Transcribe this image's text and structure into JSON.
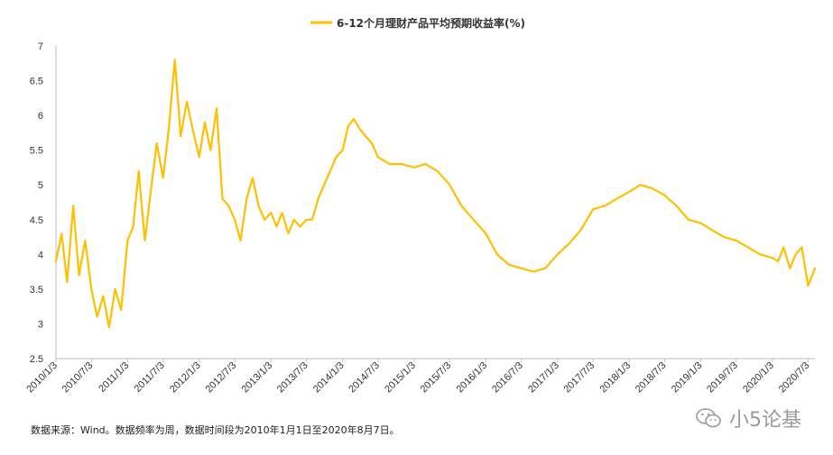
{
  "chart_data": {
    "type": "line",
    "title": "",
    "xlabel": "",
    "ylabel": "",
    "ylim": [
      2.5,
      7
    ],
    "yticks": [
      "2.5",
      "3",
      "3.5",
      "4",
      "4.5",
      "5",
      "5.5",
      "6",
      "6.5",
      "7"
    ],
    "xticks": [
      "2010/1/3",
      "2010/7/3",
      "2011/1/3",
      "2011/7/3",
      "2012/1/3",
      "2012/7/3",
      "2013/1/3",
      "2013/7/3",
      "2014/1/3",
      "2014/7/3",
      "2015/1/3",
      "2015/7/3",
      "2016/1/3",
      "2016/7/3",
      "2017/1/3",
      "2017/7/3",
      "2018/1/3",
      "2018/7/3",
      "2019/1/3",
      "2019/7/3",
      "2020/1/3",
      "2020/7/3"
    ],
    "grid": false,
    "legend_position": "top-center",
    "series": [
      {
        "name": "6-12个月理财产品平均预期收益率(%)",
        "color": "#FFC000",
        "x": [
          "2010/1/3",
          "2010/2/1",
          "2010/3/1",
          "2010/4/1",
          "2010/5/1",
          "2010/6/1",
          "2010/7/3",
          "2010/8/1",
          "2010/9/1",
          "2010/10/1",
          "2010/11/1",
          "2010/12/1",
          "2011/1/3",
          "2011/2/1",
          "2011/3/1",
          "2011/4/1",
          "2011/5/1",
          "2011/6/1",
          "2011/7/3",
          "2011/8/1",
          "2011/9/1",
          "2011/10/1",
          "2011/11/1",
          "2011/12/1",
          "2012/1/3",
          "2012/2/1",
          "2012/3/1",
          "2012/4/1",
          "2012/5/1",
          "2012/6/1",
          "2012/7/3",
          "2012/8/1",
          "2012/9/1",
          "2012/10/1",
          "2012/11/1",
          "2012/12/1",
          "2013/1/3",
          "2013/2/1",
          "2013/3/1",
          "2013/4/1",
          "2013/5/1",
          "2013/6/1",
          "2013/7/3",
          "2013/8/1",
          "2013/9/1",
          "2013/10/1",
          "2013/11/1",
          "2013/12/1",
          "2014/1/3",
          "2014/2/1",
          "2014/3/1",
          "2014/4/1",
          "2014/5/1",
          "2014/6/1",
          "2014/7/3",
          "2014/9/1",
          "2014/11/1",
          "2015/1/3",
          "2015/3/1",
          "2015/5/1",
          "2015/7/3",
          "2015/9/1",
          "2015/11/1",
          "2016/1/3",
          "2016/3/1",
          "2016/5/1",
          "2016/7/3",
          "2016/9/1",
          "2016/11/1",
          "2017/1/3",
          "2017/3/1",
          "2017/5/1",
          "2017/7/3",
          "2017/9/1",
          "2017/11/1",
          "2018/1/3",
          "2018/3/1",
          "2018/5/1",
          "2018/7/3",
          "2018/9/1",
          "2018/11/1",
          "2019/1/3",
          "2019/3/1",
          "2019/5/1",
          "2019/7/3",
          "2019/9/1",
          "2019/11/1",
          "2020/1/3",
          "2020/2/1",
          "2020/3/1",
          "2020/4/1",
          "2020/5/1",
          "2020/6/1",
          "2020/7/3",
          "2020/8/7"
        ],
        "values": [
          3.9,
          4.3,
          3.6,
          4.7,
          3.7,
          4.2,
          3.5,
          3.1,
          3.4,
          2.95,
          3.5,
          3.2,
          4.2,
          4.4,
          5.2,
          4.2,
          4.9,
          5.6,
          5.1,
          5.8,
          6.8,
          5.7,
          6.2,
          5.8,
          5.4,
          5.9,
          5.5,
          6.1,
          4.8,
          4.7,
          4.5,
          4.2,
          4.8,
          5.1,
          4.7,
          4.5,
          4.6,
          4.4,
          4.6,
          4.3,
          4.5,
          4.4,
          4.5,
          4.5,
          4.8,
          5.0,
          5.2,
          5.4,
          5.5,
          5.85,
          5.95,
          5.8,
          5.7,
          5.6,
          5.4,
          5.3,
          5.3,
          5.25,
          5.3,
          5.2,
          5.0,
          4.7,
          4.5,
          4.3,
          4.0,
          3.85,
          3.8,
          3.75,
          3.8,
          4.0,
          4.15,
          4.35,
          4.65,
          4.7,
          4.8,
          4.9,
          5.0,
          4.95,
          4.85,
          4.7,
          4.5,
          4.45,
          4.35,
          4.25,
          4.2,
          4.1,
          4.0,
          3.95,
          3.9,
          4.1,
          3.8,
          4.0,
          4.1,
          3.55,
          3.8
        ]
      }
    ]
  },
  "footer": {
    "source_note": "数据来源：Wind。数据频率为周，数据时间段为2010年1月1日至2020年8月7日。",
    "watermark": "小5论基"
  }
}
